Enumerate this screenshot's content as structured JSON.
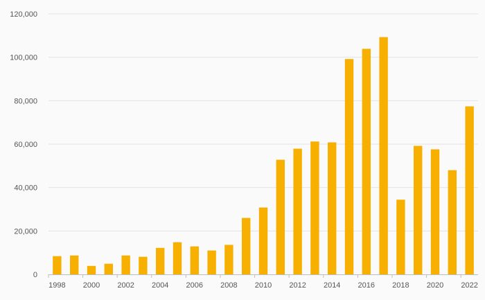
{
  "chart_data": {
    "type": "bar",
    "title": "",
    "xlabel": "",
    "ylabel": "",
    "categories": [
      "1998",
      "1999",
      "2000",
      "2001",
      "2002",
      "2003",
      "2004",
      "2005",
      "2006",
      "2007",
      "2008",
      "2009",
      "2010",
      "2011",
      "2012",
      "2013",
      "2014",
      "2015",
      "2016",
      "2017",
      "2018",
      "2019",
      "2020",
      "2021",
      "2022"
    ],
    "values": [
      8400,
      8700,
      3900,
      4900,
      8700,
      8100,
      12200,
      14800,
      12900,
      11000,
      13600,
      26000,
      30800,
      52800,
      57900,
      61200,
      60800,
      99200,
      103900,
      109300,
      34400,
      59200,
      57600,
      48000,
      77400
    ],
    "x_tick_labels": [
      "1998",
      "2000",
      "2002",
      "2004",
      "2006",
      "2008",
      "2010",
      "2012",
      "2014",
      "2016",
      "2018",
      "2020",
      "2022"
    ],
    "y_tick_labels": [
      "0",
      "20,000",
      "40,000",
      "60,000",
      "80,000",
      "100,000",
      "120,000"
    ],
    "y_ticks": [
      0,
      20000,
      40000,
      60000,
      80000,
      100000,
      120000
    ],
    "ylim": [
      0,
      120000
    ],
    "grid": true,
    "legend": "none",
    "bar_color": "#f8b000"
  }
}
